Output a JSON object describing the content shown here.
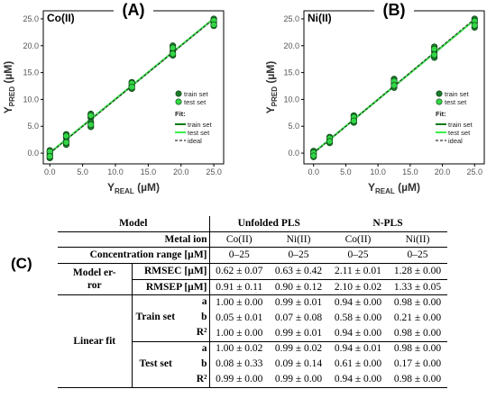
{
  "figure": {
    "panel_a": "(A)",
    "panel_b": "(B)",
    "panel_c": "(C)"
  },
  "chart_data": [
    {
      "type": "scatter",
      "panel": "(A)",
      "label": "Co(II)",
      "xlabel": "Y",
      "xlabel_sub": "REAL",
      "xlabel_unit": "(µM)",
      "ylabel": "Y",
      "ylabel_sub": "PRED",
      "ylabel_unit": "(µM)",
      "xlim": [
        -1,
        26.5
      ],
      "ylim": [
        -2,
        26.5
      ],
      "xticks": [
        "0.0",
        "5.0",
        "10.0",
        "15.0",
        "20.0",
        "25.0"
      ],
      "yticks": [
        "0.0",
        "5.0",
        "10.0",
        "15.0",
        "20.0",
        "25.0"
      ],
      "legend": {
        "placement": "bottom-right",
        "markers": [
          "train set",
          "test set"
        ],
        "fit_title": "Fit:",
        "lines": [
          "train set",
          "test set",
          "ideal"
        ]
      },
      "colors": {
        "train": "#1c7a2a",
        "test": "#33d646",
        "train_line": "#0b7a17",
        "test_line": "#3aef4a",
        "ideal": "#333333"
      },
      "series": [
        {
          "name": "train set",
          "x": [
            0,
            0,
            0,
            0,
            2.5,
            2.5,
            2.5,
            2.5,
            6.25,
            6.25,
            6.25,
            6.25,
            12.5,
            12.5,
            12.5,
            18.75,
            18.75,
            18.75,
            25,
            25,
            25
          ],
          "y": [
            0.5,
            0.1,
            -0.4,
            -0.9,
            3.5,
            2.9,
            2.2,
            1.6,
            7.3,
            6.6,
            5.8,
            4.9,
            13.2,
            12.6,
            12.0,
            20.0,
            19.0,
            18.2,
            25.0,
            24.2,
            23.7
          ]
        },
        {
          "name": "test set",
          "x": [
            0,
            0,
            2.5,
            2.5,
            6.25,
            6.25,
            12.5,
            12.5,
            18.75,
            18.75,
            25,
            25
          ],
          "y": [
            0.3,
            -0.6,
            3.2,
            2.0,
            7.0,
            5.3,
            13.0,
            12.3,
            19.6,
            18.5,
            24.7,
            23.9
          ]
        }
      ],
      "fit_lines": [
        {
          "name": "train set",
          "slope": 1.0,
          "intercept": 0.05
        },
        {
          "name": "test set",
          "slope": 1.0,
          "intercept": 0.08
        },
        {
          "name": "ideal",
          "slope": 1.0,
          "intercept": 0.0
        }
      ]
    },
    {
      "type": "scatter",
      "panel": "(B)",
      "label": "Ni(II)",
      "xlabel": "Y",
      "xlabel_sub": "REAL",
      "xlabel_unit": "(µM)",
      "ylabel": "Y",
      "ylabel_sub": "PRED",
      "ylabel_unit": "(µM)",
      "xlim": [
        -1.5,
        26.5
      ],
      "ylim": [
        -2,
        26.5
      ],
      "xticks": [
        "0.0",
        "5.0",
        "10.0",
        "15.0",
        "20.0",
        "25.0"
      ],
      "yticks": [
        "0.0",
        "5.0",
        "10.0",
        "15.0",
        "20.0",
        "25.0"
      ],
      "legend": {
        "placement": "bottom-right",
        "markers": [
          "train set",
          "test set"
        ],
        "fit_title": "Fit:",
        "lines": [
          "train set",
          "test set",
          "ideal"
        ]
      },
      "colors": {
        "train": "#1c7a2a",
        "test": "#33d646",
        "train_line": "#0b7a17",
        "test_line": "#3aef4a",
        "ideal": "#333333"
      },
      "series": [
        {
          "name": "train set",
          "x": [
            0,
            0,
            0,
            2.5,
            2.5,
            2.5,
            6.25,
            6.25,
            6.25,
            12.5,
            12.5,
            12.5,
            18.75,
            18.75,
            18.75,
            25,
            25,
            25
          ],
          "y": [
            0.4,
            -0.2,
            -0.7,
            3.0,
            2.4,
            1.9,
            7.0,
            6.3,
            5.7,
            13.8,
            13.0,
            12.2,
            19.8,
            18.9,
            17.8,
            25.0,
            24.3,
            23.4
          ]
        },
        {
          "name": "test set",
          "x": [
            0,
            0,
            2.5,
            2.5,
            6.25,
            6.25,
            12.5,
            12.5,
            18.75,
            18.75,
            25,
            25
          ],
          "y": [
            0.1,
            -0.5,
            2.8,
            2.2,
            6.7,
            6.0,
            13.4,
            12.6,
            19.4,
            18.3,
            24.6,
            23.8
          ]
        }
      ],
      "fit_lines": [
        {
          "name": "train set",
          "slope": 0.99,
          "intercept": 0.07
        },
        {
          "name": "test set",
          "slope": 0.99,
          "intercept": 0.09
        },
        {
          "name": "ideal",
          "slope": 1.0,
          "intercept": 0.0
        }
      ]
    }
  ],
  "table": {
    "h_model": "Model",
    "h_unfolded": "Unfolded PLS",
    "h_npls": "N-PLS",
    "h_metal": "Metal ion",
    "metals": [
      "Co(II)",
      "Ni(II)",
      "Co(II)",
      "Ni(II)"
    ],
    "h_conc": "Concentration range [µM]",
    "conc": [
      "0–25",
      "0–25",
      "0–25",
      "0–25"
    ],
    "model_error_1": "Model er-",
    "model_error_2": "ror",
    "rmsec_label": "RMSEC [µM]",
    "rmsec": [
      "0.62 ± 0.07",
      "0.63 ± 0.42",
      "2.11 ± 0.01",
      "1.28 ± 0.00"
    ],
    "rmsep_label": "RMSEP [µM]",
    "rmsep": [
      "0.91 ± 0.11",
      "0.90 ± 0.12",
      "2.10 ± 0.02",
      "1.33 ± 0.05"
    ],
    "linear_fit": "Linear fit",
    "train_set": "Train set",
    "test_set": "Test set",
    "params": [
      "a",
      "b",
      "R²"
    ],
    "train_a": [
      "1.00 ± 0.00",
      "0.99 ± 0.01",
      "0.94 ± 0.00",
      "0.98 ± 0.00"
    ],
    "train_b": [
      "0.05 ± 0.01",
      "0.07 ± 0.08",
      "0.58 ± 0.00",
      "0.21 ± 0.00"
    ],
    "train_r2": [
      "1.00 ± 0.00",
      "0.99 ± 0.01",
      "0.94 ± 0.00",
      "0.98 ± 0.00"
    ],
    "test_a": [
      "1.00 ± 0.02",
      "0.99 ± 0.02",
      "0.94 ± 0.01",
      "0.98 ± 0.00"
    ],
    "test_b": [
      "0.08 ± 0.33",
      "0.09 ± 0.14",
      "0.61 ± 0.00",
      "0.17 ± 0.00"
    ],
    "test_r2": [
      "0.99 ± 0.00",
      "0.99 ± 0.00",
      "0.94 ± 0.00",
      "0.98 ± 0.00"
    ]
  }
}
